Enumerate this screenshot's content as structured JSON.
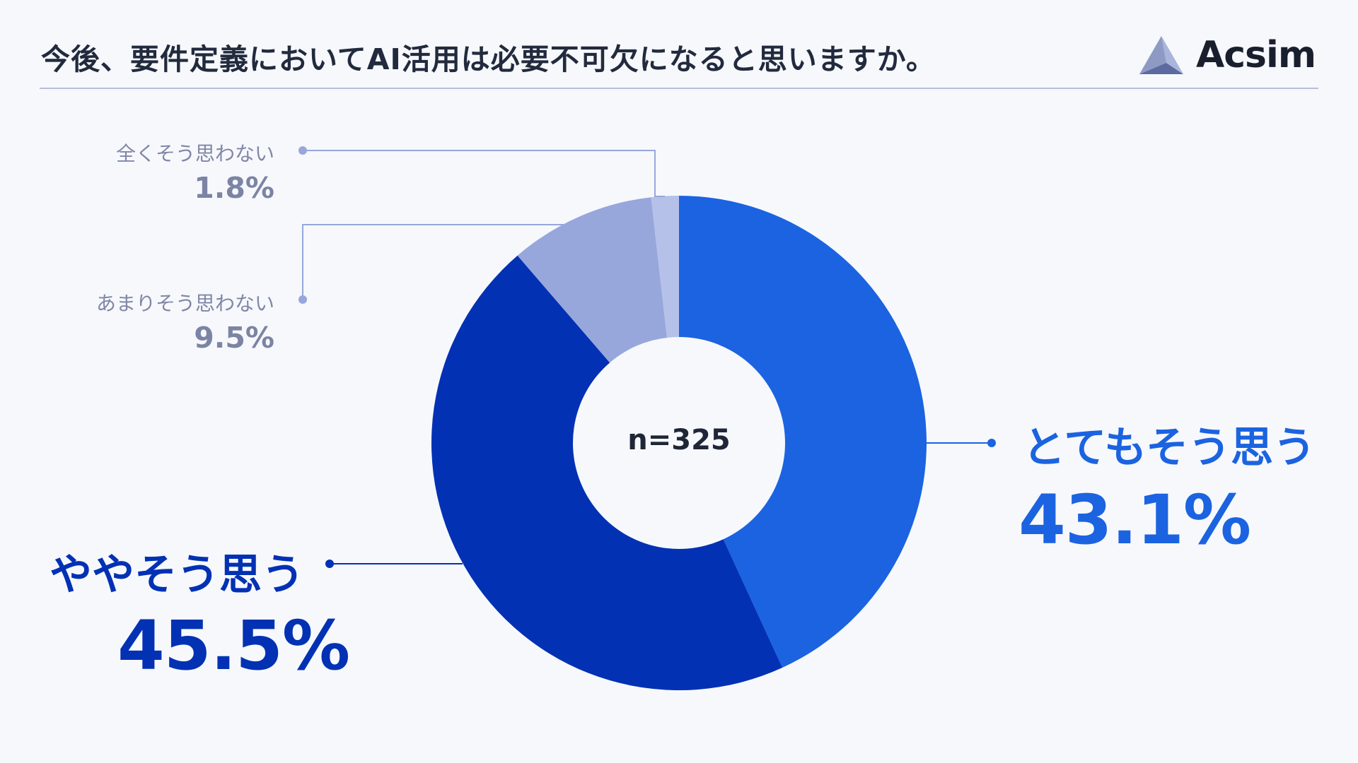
{
  "title": "今後、要件定義においてAI活用は必要不可欠になると思いますか。",
  "brand": {
    "name": "Acsim",
    "logo_icon": "triangle-logo-icon"
  },
  "chart_data": {
    "type": "pie",
    "donut": true,
    "center_label": "n=325",
    "slices": [
      {
        "label": "とてもそう思う",
        "value": 43.1,
        "value_label": "43.1%",
        "color": "#1b63e0"
      },
      {
        "label": "ややそう思う",
        "value": 45.5,
        "value_label": "45.5%",
        "color": "#0231b4"
      },
      {
        "label": "あまりそう思わない",
        "value": 9.5,
        "value_label": "9.5%",
        "color": "#97a7dc"
      },
      {
        "label": "全くそう思わない",
        "value": 1.8,
        "value_label": "1.8%",
        "color": "#b5c1e8"
      }
    ]
  }
}
